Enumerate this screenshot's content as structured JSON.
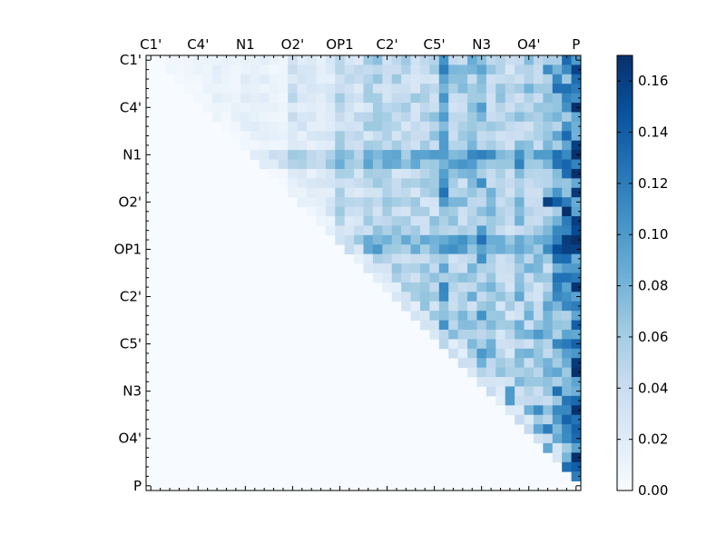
{
  "chart_data": {
    "type": "heatmap",
    "title": "",
    "xlabel": "",
    "ylabel": "",
    "n": 46,
    "colormap": "Blues",
    "vmin": 0.0,
    "vmax": 0.17,
    "x_tick_labels": [
      "C1'",
      "C4'",
      "N1",
      "O2'",
      "OP1",
      "C2'",
      "C5'",
      "N3",
      "O4'",
      "P"
    ],
    "x_tick_indices": [
      0,
      5,
      10,
      15,
      20,
      25,
      30,
      35,
      40,
      45
    ],
    "y_tick_labels": [
      "C1'",
      "C4'",
      "N1",
      "O2'",
      "OP1",
      "C2'",
      "C5'",
      "N3",
      "O4'",
      "P"
    ],
    "y_tick_indices": [
      0,
      5,
      10,
      15,
      20,
      25,
      30,
      35,
      40,
      45
    ],
    "x_ticks_position": "top",
    "colorbar": {
      "ticks": [
        "0.00",
        "0.02",
        "0.04",
        "0.06",
        "0.08",
        "0.10",
        "0.12",
        "0.14",
        "0.16"
      ],
      "tick_values": [
        0.0,
        0.02,
        0.04,
        0.06,
        0.08,
        0.1,
        0.12,
        0.14,
        0.16
      ],
      "position": "right"
    },
    "upper_triangle_only": true,
    "cell_values": {
      "description_free": true,
      "seed": 7,
      "column_means": [
        0.0,
        0.0,
        0.01,
        0.01,
        0.01,
        0.01,
        0.01,
        0.015,
        0.01,
        0.01,
        0.015,
        0.015,
        0.015,
        0.01,
        0.01,
        0.035,
        0.025,
        0.02,
        0.02,
        0.025,
        0.05,
        0.04,
        0.035,
        0.045,
        0.05,
        0.05,
        0.05,
        0.045,
        0.045,
        0.05,
        0.05,
        0.09,
        0.055,
        0.055,
        0.06,
        0.075,
        0.06,
        0.05,
        0.045,
        0.06,
        0.06,
        0.055,
        0.065,
        0.09,
        0.095,
        0.13
      ],
      "strong_rows": [
        10,
        11,
        19,
        20
      ],
      "strong_row_boost": 0.03,
      "hotspots": [
        [
          1,
          42,
          0.11
        ],
        [
          2,
          45,
          0.13
        ],
        [
          15,
          42,
          0.16
        ],
        [
          15,
          43,
          0.14
        ],
        [
          16,
          44,
          0.17
        ],
        [
          20,
          43,
          0.15
        ],
        [
          20,
          44,
          0.16
        ],
        [
          25,
          39,
          0.09
        ],
        [
          26,
          45,
          0.12
        ],
        [
          29,
          41,
          0.1
        ],
        [
          35,
          38,
          0.1
        ],
        [
          36,
          38,
          0.1
        ],
        [
          37,
          41,
          0.11
        ],
        [
          38,
          43,
          0.1
        ],
        [
          39,
          41,
          0.09
        ],
        [
          39,
          42,
          0.12
        ],
        [
          40,
          44,
          0.11
        ],
        [
          41,
          42,
          0.09
        ],
        [
          42,
          44,
          0.08
        ],
        [
          43,
          44,
          0.13
        ],
        [
          43,
          45,
          0.14
        ],
        [
          44,
          45,
          0.12
        ],
        [
          44,
          43,
          0.09
        ]
      ]
    }
  }
}
